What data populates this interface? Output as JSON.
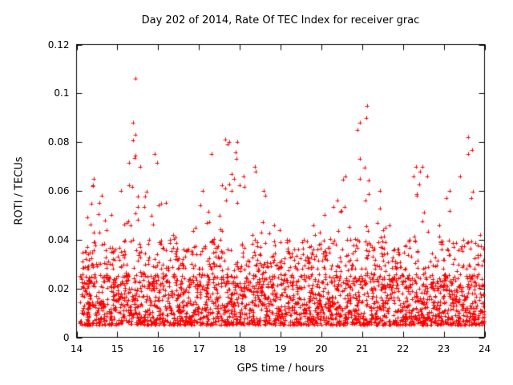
{
  "chart_data": {
    "type": "scatter",
    "title": "Day 202 of 2014, Rate Of TEC Index for receiver grac",
    "xlabel": "GPS time / hours",
    "ylabel": "ROTI / TECUs",
    "xlim": [
      14,
      24
    ],
    "ylim": [
      0,
      0.12
    ],
    "x_ticks": [
      14,
      15,
      16,
      17,
      18,
      19,
      20,
      21,
      22,
      23,
      24
    ],
    "x_tick_labels": [
      "14",
      "15",
      "16",
      "17",
      "18",
      "19",
      "20",
      "21",
      "22",
      "23",
      "24"
    ],
    "y_ticks": [
      0,
      0.02,
      0.04,
      0.06,
      0.08,
      0.1,
      0.12
    ],
    "y_tick_labels": [
      "0",
      "0.02",
      "0.04",
      "0.06",
      "0.08",
      "0.1",
      "0.12"
    ],
    "grid": false,
    "legend": "none",
    "marker": "plus",
    "marker_color": "#ff0000",
    "marker_size": 5,
    "envelope_bins": [
      [
        14.08,
        0.035
      ],
      [
        14.25,
        0.065
      ],
      [
        14.5,
        0.058
      ],
      [
        14.75,
        0.05
      ],
      [
        15.0,
        0.06
      ],
      [
        15.25,
        0.106
      ],
      [
        15.5,
        0.07
      ],
      [
        15.75,
        0.075
      ],
      [
        16.0,
        0.055
      ],
      [
        16.25,
        0.042
      ],
      [
        16.5,
        0.036
      ],
      [
        16.75,
        0.045
      ],
      [
        17.0,
        0.06
      ],
      [
        17.25,
        0.075
      ],
      [
        17.5,
        0.081
      ],
      [
        17.75,
        0.08
      ],
      [
        18.0,
        0.066
      ],
      [
        18.25,
        0.07
      ],
      [
        18.5,
        0.06
      ],
      [
        18.75,
        0.046
      ],
      [
        19.0,
        0.04
      ],
      [
        19.25,
        0.036
      ],
      [
        19.5,
        0.04
      ],
      [
        19.75,
        0.046
      ],
      [
        20.0,
        0.05
      ],
      [
        20.25,
        0.056
      ],
      [
        20.5,
        0.066
      ],
      [
        20.75,
        0.085
      ],
      [
        21.0,
        0.095
      ],
      [
        21.25,
        0.06
      ],
      [
        21.5,
        0.046
      ],
      [
        21.75,
        0.036
      ],
      [
        22.0,
        0.04
      ],
      [
        22.25,
        0.07
      ],
      [
        22.5,
        0.066
      ],
      [
        22.75,
        0.046
      ],
      [
        23.0,
        0.06
      ],
      [
        23.25,
        0.066
      ],
      [
        23.5,
        0.082
      ],
      [
        23.75,
        0.042
      ]
    ],
    "extra_points": [
      [
        15.38,
        0.088
      ],
      [
        15.45,
        0.083
      ],
      [
        21.1,
        0.09
      ],
      [
        20.95,
        0.088
      ],
      [
        17.7,
        0.079
      ],
      [
        17.75,
        0.08
      ],
      [
        23.6,
        0.075
      ],
      [
        22.42,
        0.068
      ],
      [
        18.4,
        0.068
      ],
      [
        14.4,
        0.062
      ]
    ],
    "generation": {
      "seed": 20140202,
      "points_per_bin": 75,
      "bin_width": 0.25,
      "baseline_floor": 0.005,
      "baseline_span": 0.021,
      "baseline_exp": 1.6,
      "mid_floor": 0.02,
      "mid_span": 0.02,
      "tail_floor": 0.028,
      "tail_exp": 2,
      "frac_baseline": 0.78,
      "frac_mid": 0.15
    }
  }
}
